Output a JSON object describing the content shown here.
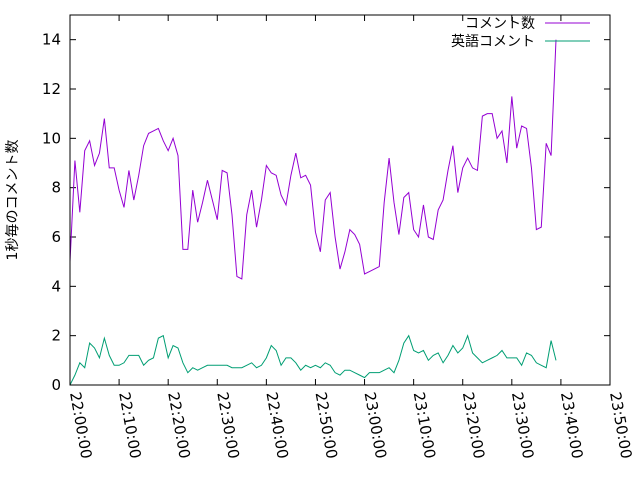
{
  "chart_data": {
    "type": "line",
    "title": "",
    "xlabel": "",
    "ylabel": "1秒毎のコメント数",
    "ylim": [
      0,
      15
    ],
    "yticks": [
      0,
      2,
      4,
      6,
      8,
      10,
      12,
      14
    ],
    "x_tick_labels": [
      "22:00:00",
      "22:10:00",
      "22:20:00",
      "22:30:00",
      "22:40:00",
      "22:50:00",
      "23:00:00",
      "23:10:00",
      "23:20:00",
      "23:30:00",
      "23:40:00",
      "23:50:00"
    ],
    "x_start": "22:00:00",
    "x_end": "23:50:00",
    "x_interval_seconds": 60,
    "grid": false,
    "legend_position": "top-right",
    "series": [
      {
        "name": "コメント数",
        "color": "#9400d3",
        "values": [
          5.0,
          9.1,
          7.0,
          9.5,
          9.9,
          8.9,
          9.4,
          10.8,
          8.8,
          8.8,
          7.9,
          7.2,
          8.7,
          7.5,
          8.5,
          9.7,
          10.2,
          10.3,
          10.4,
          9.9,
          9.5,
          10.0,
          9.3,
          5.5,
          5.5,
          7.9,
          6.6,
          7.4,
          8.3,
          7.5,
          6.7,
          8.7,
          8.6,
          6.9,
          4.4,
          4.3,
          6.9,
          7.9,
          6.4,
          7.5,
          8.9,
          8.6,
          8.5,
          7.7,
          7.3,
          8.5,
          9.4,
          8.4,
          8.5,
          8.1,
          6.2,
          5.4,
          7.5,
          7.8,
          6.0,
          4.7,
          5.4,
          6.3,
          6.1,
          5.7,
          4.5,
          4.6,
          4.7,
          4.8,
          7.4,
          9.2,
          7.4,
          6.1,
          7.6,
          7.8,
          6.3,
          6.0,
          7.3,
          6.0,
          5.9,
          7.1,
          7.5,
          8.7,
          9.7,
          7.8,
          8.8,
          9.2,
          8.8,
          8.7,
          10.9,
          11.0,
          11.0,
          10.0,
          10.3,
          9.0,
          11.7,
          9.6,
          10.5,
          10.4,
          8.8,
          6.3,
          6.4,
          9.8,
          9.3,
          14.0
        ]
      },
      {
        "name": "英語コメント",
        "color": "#009e73",
        "values": [
          0.0,
          0.4,
          0.9,
          0.7,
          1.7,
          1.5,
          1.1,
          1.9,
          1.2,
          0.8,
          0.8,
          0.9,
          1.2,
          1.2,
          1.2,
          0.8,
          1.0,
          1.1,
          1.9,
          2.0,
          1.1,
          1.6,
          1.5,
          0.9,
          0.5,
          0.7,
          0.6,
          0.7,
          0.8,
          0.8,
          0.8,
          0.8,
          0.8,
          0.7,
          0.7,
          0.7,
          0.8,
          0.9,
          0.7,
          0.8,
          1.1,
          1.6,
          1.4,
          0.8,
          1.1,
          1.1,
          0.9,
          0.6,
          0.8,
          0.7,
          0.8,
          0.7,
          0.9,
          0.8,
          0.5,
          0.4,
          0.6,
          0.6,
          0.5,
          0.4,
          0.3,
          0.5,
          0.5,
          0.5,
          0.6,
          0.7,
          0.5,
          1.0,
          1.7,
          2.0,
          1.4,
          1.3,
          1.4,
          1.0,
          1.2,
          1.3,
          0.9,
          1.2,
          1.6,
          1.3,
          1.5,
          2.0,
          1.3,
          1.1,
          0.9,
          1.0,
          1.1,
          1.2,
          1.4,
          1.1,
          1.1,
          1.1,
          0.8,
          1.3,
          1.2,
          0.9,
          0.8,
          0.7,
          1.8,
          1.0
        ]
      }
    ]
  }
}
